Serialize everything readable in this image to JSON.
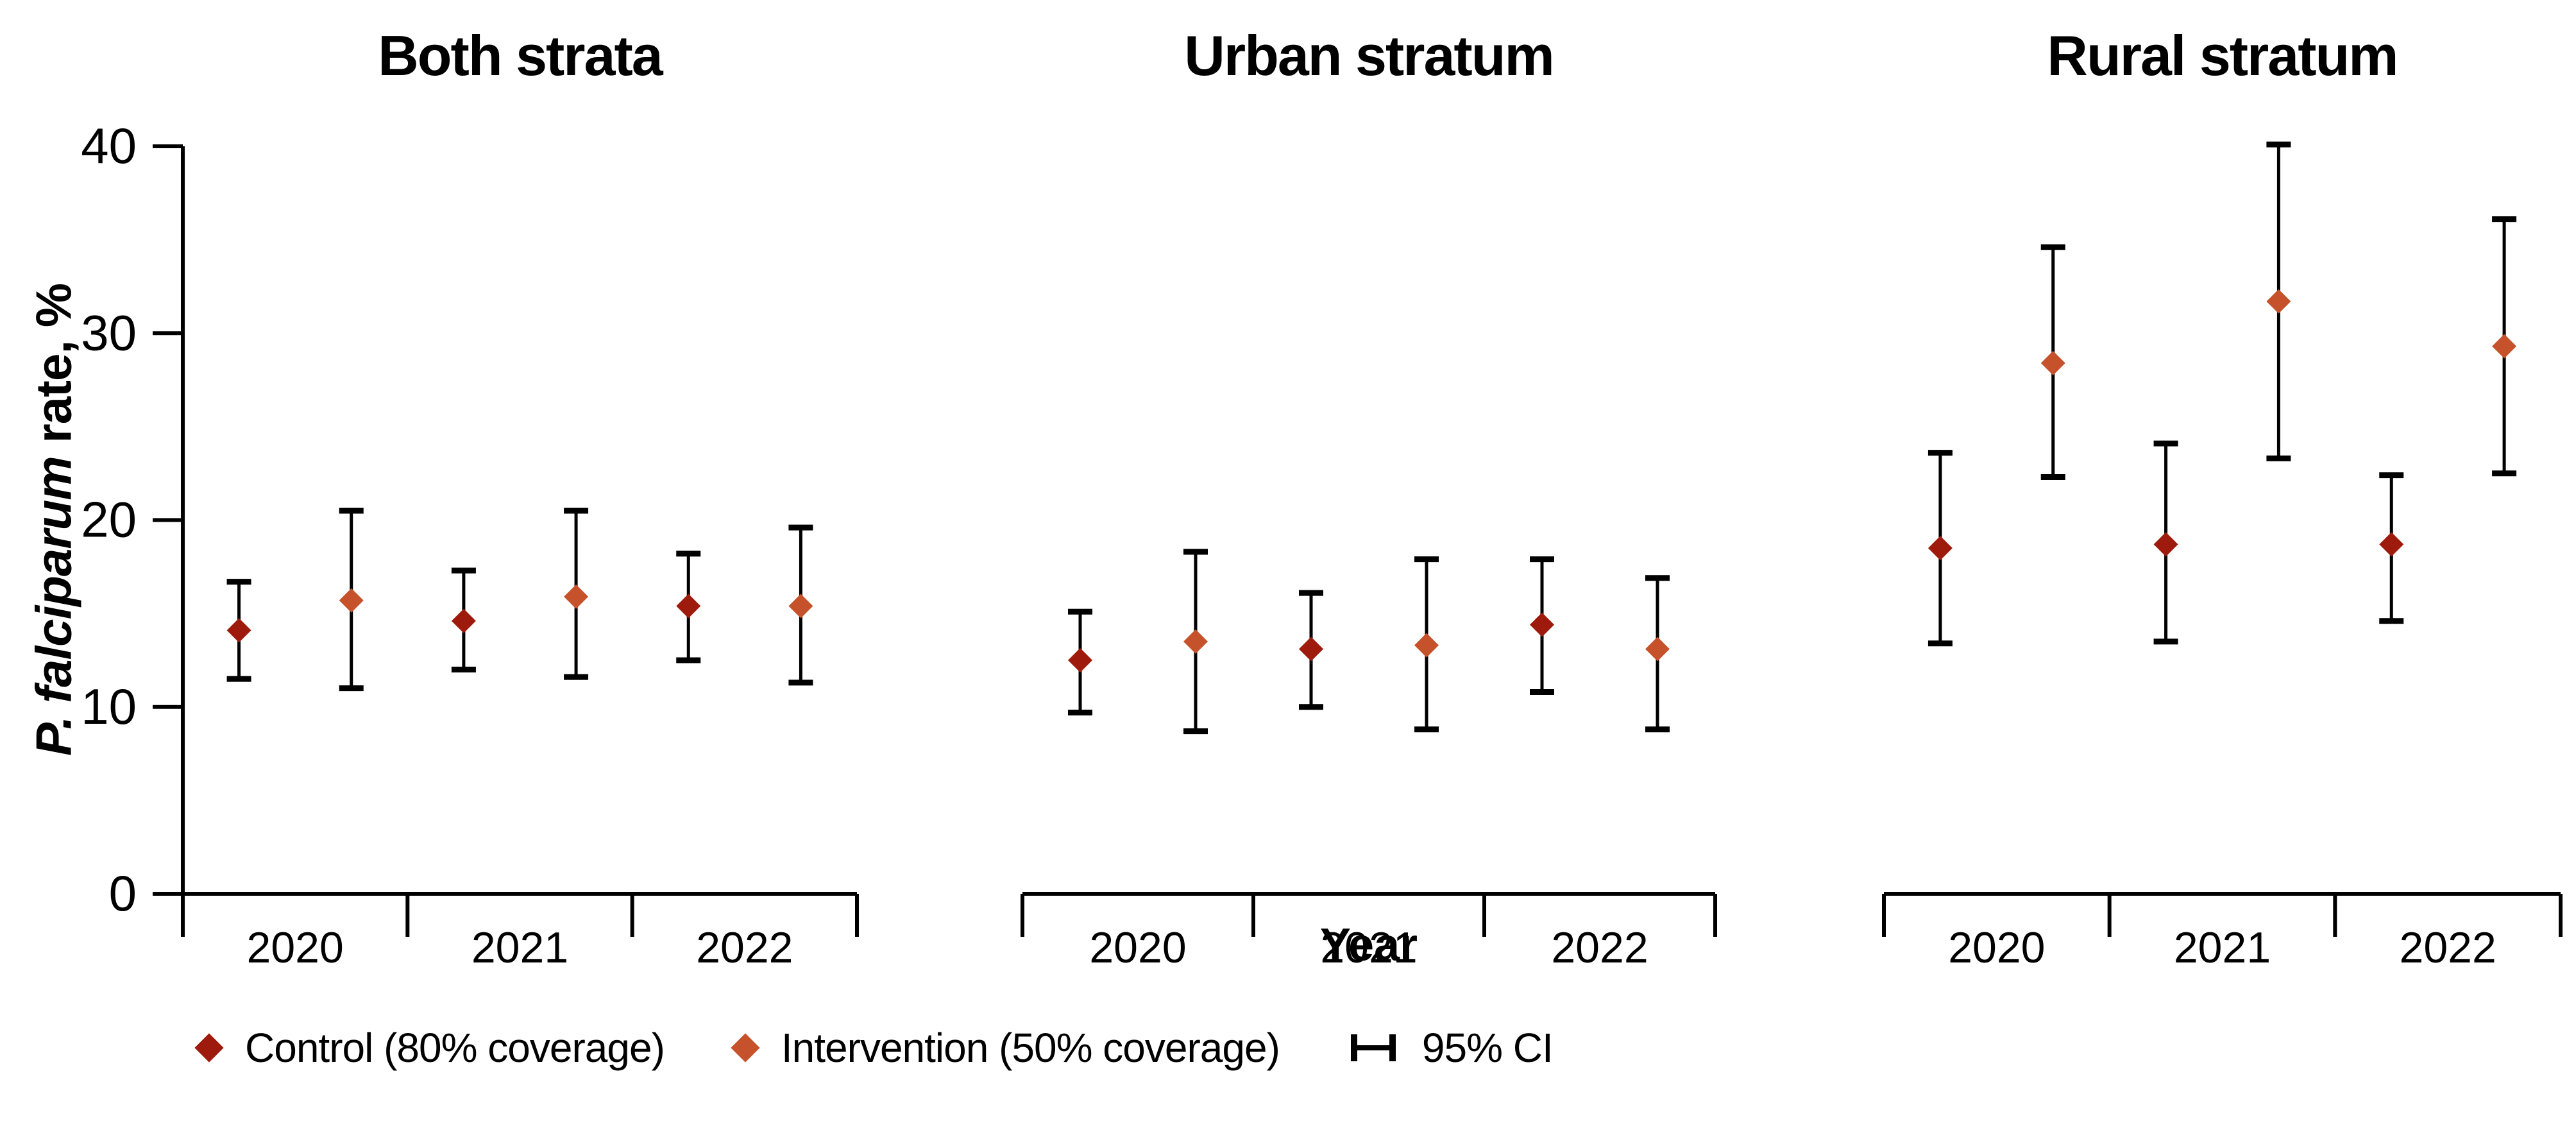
{
  "figure": {
    "y_axis": {
      "label_italic": "P. falciparum",
      "label_rest": " rate, %",
      "ticks": [
        0,
        10,
        20,
        30,
        40
      ],
      "min": 0,
      "max": 40
    },
    "x_axis": {
      "label": "Year",
      "years": [
        "2020",
        "2021",
        "2022"
      ]
    },
    "legend": [
      {
        "symbol": "diamond",
        "color": "#9e1a0c",
        "label": "Control (80% coverage)"
      },
      {
        "symbol": "diamond",
        "color": "#c5522a",
        "label": "Intervention (50% coverage)"
      },
      {
        "symbol": "error-bar",
        "color": "#000000",
        "label": "95% CI"
      }
    ]
  },
  "chart_data": [
    {
      "type": "scatter",
      "title": "Both strata",
      "x": [
        "2020",
        "2021",
        "2022"
      ],
      "ylabel": "P. falciparum rate, %",
      "ylim": [
        0,
        40
      ],
      "grid": false,
      "series": [
        {
          "name": "Control (80% coverage)",
          "color": "#9e1a0c",
          "values": [
            14.1,
            14.6,
            15.4
          ],
          "ci_low": [
            11.5,
            12.0,
            12.5
          ],
          "ci_high": [
            16.7,
            17.3,
            18.2
          ]
        },
        {
          "name": "Intervention (50% coverage)",
          "color": "#c5522a",
          "values": [
            15.7,
            15.9,
            15.4
          ],
          "ci_low": [
            11.0,
            11.6,
            11.3
          ],
          "ci_high": [
            20.5,
            20.5,
            19.6
          ]
        }
      ]
    },
    {
      "type": "scatter",
      "title": "Urban stratum",
      "x": [
        "2020",
        "2021",
        "2022"
      ],
      "ylabel": "P. falciparum rate, %",
      "ylim": [
        0,
        40
      ],
      "grid": false,
      "series": [
        {
          "name": "Control (80% coverage)",
          "color": "#9e1a0c",
          "values": [
            12.5,
            13.1,
            14.4
          ],
          "ci_low": [
            9.7,
            10.0,
            10.8
          ],
          "ci_high": [
            15.1,
            16.1,
            17.9
          ]
        },
        {
          "name": "Intervention (50% coverage)",
          "color": "#c5522a",
          "values": [
            13.5,
            13.3,
            13.1
          ],
          "ci_low": [
            8.7,
            8.8,
            8.8
          ],
          "ci_high": [
            18.3,
            17.9,
            16.9
          ]
        }
      ]
    },
    {
      "type": "scatter",
      "title": "Rural stratum",
      "x": [
        "2020",
        "2021",
        "2022"
      ],
      "ylabel": "P. falciparum rate, %",
      "ylim": [
        0,
        40
      ],
      "grid": false,
      "series": [
        {
          "name": "Control (80% coverage)",
          "color": "#9e1a0c",
          "values": [
            18.5,
            18.7,
            18.7
          ],
          "ci_low": [
            13.4,
            13.5,
            14.6
          ],
          "ci_high": [
            23.6,
            24.1,
            22.4
          ]
        },
        {
          "name": "Intervention (50% coverage)",
          "color": "#c5522a",
          "values": [
            28.4,
            31.7,
            29.3
          ],
          "ci_low": [
            22.3,
            23.3,
            22.5
          ],
          "ci_high": [
            34.6,
            40.1,
            36.1
          ]
        }
      ]
    }
  ]
}
